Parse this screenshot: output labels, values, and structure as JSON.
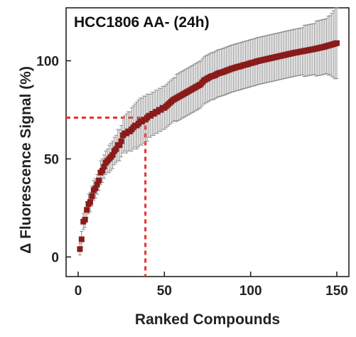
{
  "chart_data": {
    "type": "scatter",
    "title": "HCC1806 AA- (24h)",
    "xlabel": "Ranked Compounds",
    "ylabel": "Δ Fluorescence Signal (%)",
    "xlim": [
      -7,
      157
    ],
    "ylim": [
      -10,
      127
    ],
    "x_ticks": [
      0,
      50,
      100,
      150
    ],
    "y_ticks": [
      0,
      50,
      100
    ],
    "grid": false,
    "marker_color": "#8b1a1a",
    "errorbar_color": "#8c8c8c",
    "reference_line_color": "#e8322a",
    "reference_lines": {
      "x": 39,
      "y": 71
    },
    "series": [
      {
        "x": [
          1,
          2,
          3,
          4,
          5,
          6,
          7,
          8,
          9,
          10,
          11,
          12,
          13,
          14,
          15,
          16,
          17,
          18,
          19,
          20,
          21,
          22,
          23,
          24,
          25,
          26,
          27,
          28,
          29,
          30,
          31,
          32,
          33,
          34,
          35,
          36,
          37,
          38,
          39,
          40,
          41,
          42,
          43,
          44,
          45,
          46,
          47,
          48,
          49,
          50,
          51,
          52,
          53,
          54,
          55,
          56,
          57,
          58,
          59,
          60,
          61,
          62,
          63,
          64,
          65,
          66,
          67,
          68,
          69,
          70,
          71,
          72,
          73,
          74,
          75,
          76,
          77,
          78,
          79,
          80,
          81,
          82,
          83,
          84,
          85,
          86,
          87,
          88,
          89,
          90,
          91,
          92,
          93,
          94,
          95,
          96,
          97,
          98,
          99,
          100,
          101,
          102,
          103,
          104,
          105,
          106,
          107,
          108,
          109,
          110,
          111,
          112,
          113,
          114,
          115,
          116,
          117,
          118,
          119,
          120,
          121,
          122,
          123,
          124,
          125,
          126,
          127,
          128,
          129,
          130,
          131,
          132,
          133,
          134,
          135,
          136,
          137,
          138,
          139,
          140,
          141,
          142,
          143,
          144,
          145,
          146,
          147,
          148,
          149,
          150
        ],
        "y": [
          4,
          9,
          18,
          19,
          24,
          27,
          28,
          31,
          34,
          35,
          37,
          39,
          43,
          44,
          46,
          48,
          49,
          50,
          51,
          52,
          54,
          55,
          57,
          57,
          59,
          62,
          63,
          63,
          64,
          64,
          65,
          66,
          67,
          67,
          68,
          69,
          69,
          70,
          70,
          71,
          72,
          72,
          73,
          73,
          74,
          74,
          75,
          75,
          76,
          76,
          76.8,
          77.6,
          78.4,
          79.2,
          80,
          80.5,
          81,
          81.5,
          82,
          82.5,
          83,
          83.5,
          84,
          84.5,
          85,
          85.5,
          86,
          86.5,
          87,
          87.5,
          88,
          89,
          90,
          90.5,
          91,
          91.5,
          92,
          92.2,
          92.5,
          93,
          93.5,
          93.8,
          94,
          94.3,
          94.6,
          95,
          95.3,
          95.6,
          96,
          96.2,
          96.5,
          96.8,
          97,
          97.2,
          97.5,
          97.8,
          98,
          98.2,
          98.5,
          98.8,
          99,
          99.2,
          99.5,
          99.8,
          100,
          100.2,
          100.4,
          100.6,
          100.8,
          101,
          101.2,
          101.4,
          101.6,
          101.8,
          102,
          102.2,
          102.4,
          102.6,
          102.8,
          103,
          103.2,
          103.4,
          103.6,
          103.8,
          104,
          104.2,
          104.3,
          104.5,
          104.7,
          104.8,
          105,
          105.2,
          105.3,
          105.5,
          105.7,
          105.8,
          106,
          106.2,
          106.4,
          106.6,
          106.8,
          107,
          107.2,
          107.5,
          107.7,
          108,
          108.2,
          108.5,
          108.8,
          109
        ],
        "error": [
          3,
          4,
          4,
          4,
          4,
          5,
          5,
          5,
          5,
          5,
          5,
          5,
          6,
          6,
          6,
          6,
          6,
          7,
          7,
          7,
          7,
          7,
          8,
          8,
          8,
          9,
          9,
          10,
          10,
          10,
          11,
          11,
          11,
          12,
          12,
          12,
          12,
          12,
          12,
          12,
          11,
          11,
          11,
          11,
          11,
          11,
          11,
          11,
          11,
          11,
          11,
          11,
          11,
          11,
          11,
          11,
          12,
          12,
          12,
          12,
          12,
          12,
          12,
          12,
          12,
          12,
          12,
          12,
          12,
          12,
          12,
          12,
          12,
          12,
          12,
          12,
          12,
          12,
          12,
          12,
          12,
          12,
          12,
          12,
          12,
          12,
          12,
          12,
          12,
          12,
          12,
          12,
          12,
          12,
          12,
          12,
          12,
          12,
          12,
          12,
          12,
          12,
          12,
          12,
          12,
          12,
          12,
          12,
          12,
          12,
          12,
          12,
          12,
          12,
          12,
          12,
          12,
          12,
          12,
          12,
          12,
          12,
          12,
          12,
          12,
          12,
          12,
          12,
          12,
          12,
          13,
          13,
          13,
          13,
          13,
          13,
          13,
          14,
          14,
          14,
          14,
          14,
          14,
          14,
          15,
          15,
          16,
          17,
          18,
          18
        ]
      }
    ]
  }
}
